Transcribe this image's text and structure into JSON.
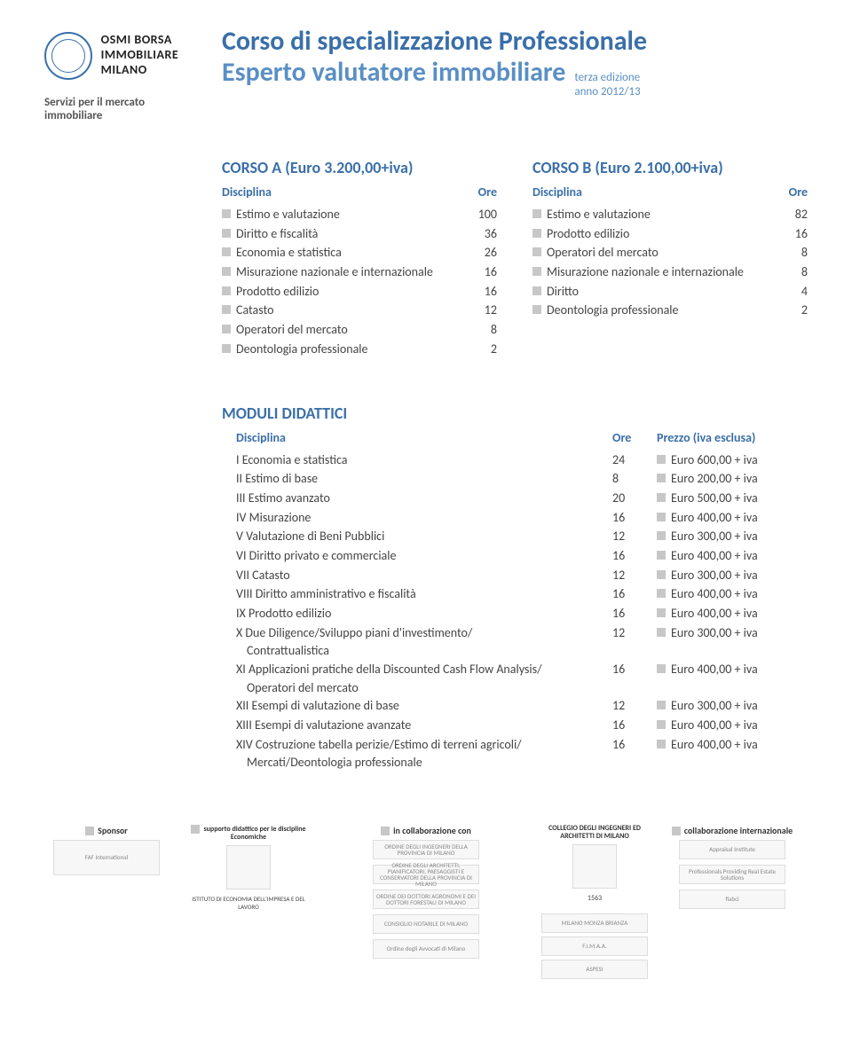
{
  "logo": {
    "line1": "OSMI BORSA",
    "line2": "IMMOBILIARE",
    "line3": "MILANO",
    "sub": "Servizi per il mercato immobiliare"
  },
  "title": {
    "line1": "Corso di specializzazione Professionale",
    "line2": "Esperto valutatore immobiliare",
    "edition1": "terza edizione",
    "edition2": "anno 2012/13"
  },
  "courseA": {
    "title": "CORSO A (Euro 3.200,00+iva)",
    "head_name": "Disciplina",
    "head_ore": "Ore",
    "rows": [
      {
        "name": "Estimo e valutazione",
        "ore": "100"
      },
      {
        "name": "Diritto e fiscalità",
        "ore": "36"
      },
      {
        "name": "Economia e statistica",
        "ore": "26"
      },
      {
        "name": "Misurazione nazionale e internazionale",
        "ore": "16"
      },
      {
        "name": "Prodotto edilizio",
        "ore": "16"
      },
      {
        "name": "Catasto",
        "ore": "12"
      },
      {
        "name": "Operatori del mercato",
        "ore": "8"
      },
      {
        "name": "Deontologia professionale",
        "ore": "2"
      }
    ]
  },
  "courseB": {
    "title": "CORSO B (Euro 2.100,00+iva)",
    "head_name": "Disciplina",
    "head_ore": "Ore",
    "rows": [
      {
        "name": "Estimo e valutazione",
        "ore": "82"
      },
      {
        "name": "Prodotto edilizio",
        "ore": "16"
      },
      {
        "name": "Operatori del mercato",
        "ore": "8"
      },
      {
        "name": "Misurazione nazionale e internazionale",
        "ore": "8"
      },
      {
        "name": "Diritto",
        "ore": "4"
      },
      {
        "name": "Deontologia professionale",
        "ore": "2"
      }
    ]
  },
  "modules": {
    "title": "MODULI DIDATTICI",
    "head_name": "Disciplina",
    "head_ore": "Ore",
    "head_price": "Prezzo (iva esclusa)",
    "rows": [
      {
        "name": "I Economia e statistica",
        "ore": "24",
        "price": "Euro 600,00 + iva"
      },
      {
        "name": "II Estimo di base",
        "ore": "8",
        "price": "Euro 200,00 + iva"
      },
      {
        "name": "III Estimo avanzato",
        "ore": "20",
        "price": "Euro 500,00 + iva"
      },
      {
        "name": "IV Misurazione",
        "ore": "16",
        "price": "Euro 400,00 + iva"
      },
      {
        "name": "V Valutazione di Beni Pubblici",
        "ore": "12",
        "price": "Euro 300,00 + iva"
      },
      {
        "name": "VI Diritto privato e commerciale",
        "ore": "16",
        "price": "Euro 400,00 + iva"
      },
      {
        "name": "VII Catasto",
        "ore": "12",
        "price": "Euro 300,00 + iva"
      },
      {
        "name": "VIII Diritto amministrativo e fiscalità",
        "ore": "16",
        "price": "Euro 400,00 + iva"
      },
      {
        "name": "IX Prodotto edilizio",
        "ore": "16",
        "price": "Euro 400,00 + iva"
      },
      {
        "name": "X Due Diligence/Sviluppo piani d'investimento/",
        "sub": "Contrattualistica",
        "ore": "12",
        "price": "Euro 300,00 + iva"
      },
      {
        "name": "XI Applicazioni pratiche della Discounted Cash Flow Analysis/",
        "sub": "Operatori del mercato",
        "ore": "16",
        "price": "Euro 400,00 + iva"
      },
      {
        "name": "XII Esempi di valutazione di base",
        "ore": "12",
        "price": "Euro 300,00 + iva"
      },
      {
        "name": "XIII Esempi di valutazione avanzate",
        "ore": "16",
        "price": "Euro 400,00 + iva"
      },
      {
        "name": "XIV Costruzione tabella perizie/Estimo di terreni agricoli/",
        "sub": "Mercati/Deontologia professionale",
        "ore": "16",
        "price": "Euro 400,00 + iva"
      }
    ]
  },
  "footer": {
    "sponsor_label": "Sponsor",
    "sponsor_logo": "FAF International",
    "didactic_label": "supporto didattico per le discipline Economiche",
    "didactic_sub": "ISTITUTO DI ECONOMIA DELL'IMPRESA E DEL LAVORO",
    "collab_label": "in collaborazione con",
    "collab_items": [
      "ORDINE DEGLI INGEGNERI DELLA PROVINCIA DI MILANO",
      "ORDINE DEGLI ARCHITETTI, PIANIFICATORI, PAESAGGISTI E CONSERVATORI DELLA PROVINCIA DI MILANO",
      "ORDINE DEI DOTTORI AGRONOMI E DEI DOTTORI FORESTALI DI MILANO",
      "CONSIGLIO NOTARILE DI MILANO",
      "Ordine degli Avvocati di Milano"
    ],
    "collegio_label": "COLLEGIO DEGLI INGEGNERI ED ARCHITETTI DI MILANO",
    "collegio_year": "1563",
    "assoc_items": [
      "MILANO MONZA BRIANZA",
      "F.I.M.A.A.",
      "ASPESI"
    ],
    "intl_label": "collaborazione internazionale",
    "intl_items": [
      "Appraisal Institute",
      "Professionals Providing Real Estate Solutions",
      "fiabci"
    ]
  },
  "colors": {
    "primary": "#3a6fa9",
    "secondary": "#5a8fc4",
    "bullet": "#c7c7c7",
    "text": "#444444"
  }
}
